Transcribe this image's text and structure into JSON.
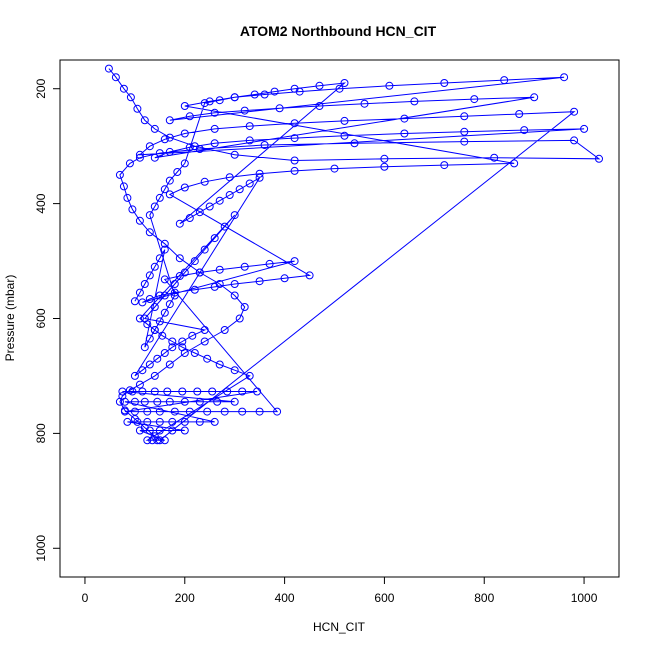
{
  "chart_data": {
    "type": "scatter",
    "title": "ATOM2 Northbound HCN_CIT",
    "xlabel": "HCN_CIT",
    "ylabel": "Pressure (mbar)",
    "xlim": [
      -50,
      1070
    ],
    "ylim": [
      1050,
      150
    ],
    "y_reversed": true,
    "x_ticks": [
      0,
      200,
      400,
      600,
      800,
      1000
    ],
    "y_ticks": [
      200,
      400,
      600,
      800,
      1000
    ],
    "grid": false,
    "legend": "none",
    "series": [
      {
        "color": "#0000ff",
        "marker": "open-circle",
        "line": true,
        "points": [
          [
            48,
            165
          ],
          [
            62,
            180
          ],
          [
            78,
            200
          ],
          [
            92,
            215
          ],
          [
            105,
            235
          ],
          [
            120,
            255
          ],
          [
            140,
            270
          ],
          [
            170,
            285
          ],
          [
            220,
            300
          ],
          [
            300,
            315
          ],
          [
            420,
            325
          ],
          [
            600,
            322
          ],
          [
            820,
            320
          ],
          [
            1030,
            322
          ],
          [
            980,
            290
          ],
          [
            760,
            292
          ],
          [
            540,
            295
          ],
          [
            360,
            298
          ],
          [
            230,
            305
          ],
          [
            150,
            312
          ],
          [
            110,
            320
          ],
          [
            90,
            330
          ],
          [
            70,
            350
          ],
          [
            78,
            370
          ],
          [
            85,
            390
          ],
          [
            95,
            410
          ],
          [
            110,
            430
          ],
          [
            130,
            450
          ],
          [
            160,
            470
          ],
          [
            190,
            495
          ],
          [
            230,
            520
          ],
          [
            270,
            540
          ],
          [
            300,
            560
          ],
          [
            320,
            580
          ],
          [
            310,
            600
          ],
          [
            280,
            620
          ],
          [
            240,
            640
          ],
          [
            200,
            660
          ],
          [
            170,
            680
          ],
          [
            140,
            700
          ],
          [
            110,
            715
          ],
          [
            90,
            725
          ],
          [
            75,
            735
          ],
          [
            70,
            745
          ],
          [
            80,
            760
          ],
          [
            100,
            775
          ],
          [
            120,
            790
          ],
          [
            140,
            805
          ],
          [
            150,
            812
          ],
          [
            980,
            240
          ],
          [
            870,
            244
          ],
          [
            760,
            248
          ],
          [
            640,
            252
          ],
          [
            520,
            256
          ],
          [
            420,
            260
          ],
          [
            330,
            265
          ],
          [
            260,
            270
          ],
          [
            200,
            278
          ],
          [
            160,
            288
          ],
          [
            130,
            300
          ],
          [
            110,
            315
          ],
          [
            1000,
            270
          ],
          [
            880,
            272
          ],
          [
            760,
            275
          ],
          [
            640,
            278
          ],
          [
            520,
            282
          ],
          [
            420,
            286
          ],
          [
            330,
            290
          ],
          [
            260,
            295
          ],
          [
            210,
            302
          ],
          [
            170,
            310
          ],
          [
            140,
            320
          ],
          [
            900,
            215
          ],
          [
            780,
            218
          ],
          [
            660,
            222
          ],
          [
            560,
            226
          ],
          [
            470,
            230
          ],
          [
            390,
            234
          ],
          [
            320,
            238
          ],
          [
            260,
            242
          ],
          [
            210,
            248
          ],
          [
            170,
            255
          ],
          [
            960,
            180
          ],
          [
            840,
            185
          ],
          [
            720,
            190
          ],
          [
            610,
            195
          ],
          [
            510,
            200
          ],
          [
            430,
            205
          ],
          [
            360,
            210
          ],
          [
            300,
            215
          ],
          [
            250,
            222
          ],
          [
            200,
            230
          ],
          [
            860,
            330
          ],
          [
            720,
            333
          ],
          [
            600,
            336
          ],
          [
            500,
            339
          ],
          [
            420,
            343
          ],
          [
            350,
            348
          ],
          [
            290,
            354
          ],
          [
            240,
            362
          ],
          [
            200,
            372
          ],
          [
            170,
            384
          ],
          [
            450,
            525
          ],
          [
            400,
            530
          ],
          [
            350,
            535
          ],
          [
            300,
            540
          ],
          [
            260,
            545
          ],
          [
            220,
            550
          ],
          [
            180,
            555
          ],
          [
            150,
            560
          ],
          [
            130,
            566
          ],
          [
            115,
            572
          ],
          [
            420,
            500
          ],
          [
            370,
            505
          ],
          [
            320,
            510
          ],
          [
            270,
            515
          ],
          [
            230,
            520
          ],
          [
            190,
            526
          ],
          [
            160,
            532
          ],
          [
            385,
            762
          ],
          [
            350,
            762
          ],
          [
            315,
            762
          ],
          [
            280,
            762
          ],
          [
            245,
            762
          ],
          [
            210,
            762
          ],
          [
            180,
            762
          ],
          [
            150,
            762
          ],
          [
            125,
            762
          ],
          [
            100,
            762
          ],
          [
            80,
            762
          ],
          [
            345,
            727
          ],
          [
            315,
            727
          ],
          [
            285,
            727
          ],
          [
            255,
            727
          ],
          [
            225,
            727
          ],
          [
            195,
            727
          ],
          [
            165,
            727
          ],
          [
            140,
            727
          ],
          [
            115,
            727
          ],
          [
            95,
            727
          ],
          [
            75,
            727
          ],
          [
            300,
            745
          ],
          [
            265,
            745
          ],
          [
            230,
            745
          ],
          [
            200,
            745
          ],
          [
            170,
            745
          ],
          [
            145,
            745
          ],
          [
            120,
            745
          ],
          [
            100,
            745
          ],
          [
            80,
            745
          ],
          [
            260,
            780
          ],
          [
            230,
            780
          ],
          [
            200,
            780
          ],
          [
            175,
            780
          ],
          [
            150,
            780
          ],
          [
            125,
            780
          ],
          [
            105,
            780
          ],
          [
            85,
            780
          ],
          [
            200,
            795
          ],
          [
            175,
            795
          ],
          [
            150,
            795
          ],
          [
            130,
            795
          ],
          [
            110,
            795
          ],
          [
            160,
            812
          ],
          [
            145,
            812
          ],
          [
            135,
            812
          ],
          [
            125,
            812
          ],
          [
            330,
            700
          ],
          [
            300,
            690
          ],
          [
            270,
            680
          ],
          [
            245,
            670
          ],
          [
            220,
            660
          ],
          [
            195,
            650
          ],
          [
            175,
            640
          ],
          [
            155,
            630
          ],
          [
            140,
            620
          ],
          [
            125,
            610
          ],
          [
            110,
            600
          ],
          [
            300,
            420
          ],
          [
            280,
            440
          ],
          [
            260,
            460
          ],
          [
            240,
            480
          ],
          [
            220,
            500
          ],
          [
            200,
            520
          ],
          [
            180,
            540
          ],
          [
            160,
            560
          ],
          [
            140,
            580
          ],
          [
            120,
            600
          ],
          [
            240,
            620
          ],
          [
            215,
            630
          ],
          [
            195,
            640
          ],
          [
            175,
            650
          ],
          [
            160,
            660
          ],
          [
            145,
            670
          ],
          [
            130,
            680
          ],
          [
            115,
            690
          ],
          [
            100,
            700
          ],
          [
            350,
            355
          ],
          [
            330,
            365
          ],
          [
            310,
            375
          ],
          [
            290,
            385
          ],
          [
            270,
            395
          ],
          [
            250,
            405
          ],
          [
            230,
            415
          ],
          [
            210,
            425
          ],
          [
            190,
            435
          ],
          [
            520,
            190
          ],
          [
            470,
            195
          ],
          [
            420,
            200
          ],
          [
            380,
            205
          ],
          [
            340,
            210
          ],
          [
            300,
            215
          ],
          [
            270,
            220
          ],
          [
            240,
            225
          ],
          [
            200,
            330
          ],
          [
            185,
            345
          ],
          [
            170,
            360
          ],
          [
            160,
            375
          ],
          [
            150,
            390
          ],
          [
            140,
            405
          ],
          [
            130,
            420
          ],
          [
            180,
            560
          ],
          [
            170,
            575
          ],
          [
            160,
            590
          ],
          [
            150,
            605
          ],
          [
            140,
            620
          ],
          [
            130,
            635
          ],
          [
            120,
            650
          ],
          [
            160,
            480
          ],
          [
            150,
            495
          ],
          [
            140,
            510
          ],
          [
            130,
            525
          ],
          [
            120,
            540
          ],
          [
            110,
            555
          ],
          [
            100,
            570
          ]
        ]
      }
    ]
  }
}
